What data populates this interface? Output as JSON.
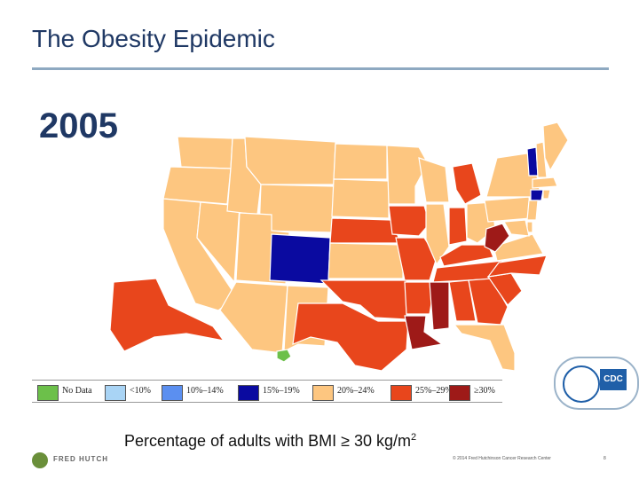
{
  "slide": {
    "title": "The Obesity Epidemic",
    "year": "2005",
    "caption_main": "Percentage of adults with BMI ≥ 30 kg/m",
    "caption_sup": "2",
    "copyright": "© 2014 Fred Hutchinson Cancer Research Center",
    "page_number": "8",
    "org_logo": "FRED HUTCH",
    "cdc_logo": "CDC"
  },
  "legend": [
    {
      "label": "No Data",
      "color": "#6cc04a"
    },
    {
      "label": "<10%",
      "color": "#a9d4f5"
    },
    {
      "label": "10%–14%",
      "color": "#5b8ff0"
    },
    {
      "label": "15%–19%",
      "color": "#0a0aa0"
    },
    {
      "label": "20%–24%",
      "color": "#fdc680"
    },
    {
      "label": "25%–29%",
      "color": "#e8461c"
    },
    {
      "label": "≥30%",
      "color": "#9e1a18"
    }
  ],
  "map_data": {
    "colors": {
      "15-19": "#0a0aa0",
      "20-24": "#fdc680",
      "25-29": "#e8461c",
      "30+": "#9e1a18",
      "no_data": "#6cc04a"
    },
    "states": [
      {
        "name": "Washington",
        "class": "20-24"
      },
      {
        "name": "Oregon",
        "class": "20-24"
      },
      {
        "name": "California",
        "class": "20-24"
      },
      {
        "name": "Nevada",
        "class": "20-24"
      },
      {
        "name": "Idaho",
        "class": "20-24"
      },
      {
        "name": "Montana",
        "class": "20-24"
      },
      {
        "name": "Wyoming",
        "class": "20-24"
      },
      {
        "name": "Utah",
        "class": "20-24"
      },
      {
        "name": "Arizona",
        "class": "20-24"
      },
      {
        "name": "Colorado",
        "class": "15-19"
      },
      {
        "name": "New Mexico",
        "class": "20-24"
      },
      {
        "name": "North Dakota",
        "class": "20-24"
      },
      {
        "name": "South Dakota",
        "class": "20-24"
      },
      {
        "name": "Nebraska",
        "class": "25-29"
      },
      {
        "name": "Kansas",
        "class": "20-24"
      },
      {
        "name": "Oklahoma",
        "class": "25-29"
      },
      {
        "name": "Texas",
        "class": "25-29"
      },
      {
        "name": "Minnesota",
        "class": "20-24"
      },
      {
        "name": "Iowa",
        "class": "25-29"
      },
      {
        "name": "Missouri",
        "class": "25-29"
      },
      {
        "name": "Arkansas",
        "class": "25-29"
      },
      {
        "name": "Louisiana",
        "class": "30+"
      },
      {
        "name": "Wisconsin",
        "class": "20-24"
      },
      {
        "name": "Illinois",
        "class": "20-24"
      },
      {
        "name": "Michigan",
        "class": "25-29"
      },
      {
        "name": "Indiana",
        "class": "25-29"
      },
      {
        "name": "Ohio",
        "class": "20-24"
      },
      {
        "name": "Kentucky",
        "class": "25-29"
      },
      {
        "name": "Tennessee",
        "class": "25-29"
      },
      {
        "name": "Mississippi",
        "class": "30+"
      },
      {
        "name": "Alabama",
        "class": "25-29"
      },
      {
        "name": "Georgia",
        "class": "25-29"
      },
      {
        "name": "Florida",
        "class": "20-24"
      },
      {
        "name": "South Carolina",
        "class": "25-29"
      },
      {
        "name": "North Carolina",
        "class": "25-29"
      },
      {
        "name": "Virginia",
        "class": "20-24"
      },
      {
        "name": "West Virginia",
        "class": "30+"
      },
      {
        "name": "Pennsylvania",
        "class": "20-24"
      },
      {
        "name": "New York",
        "class": "20-24"
      },
      {
        "name": "Vermont",
        "class": "15-19"
      },
      {
        "name": "New Hampshire",
        "class": "20-24"
      },
      {
        "name": "Maine",
        "class": "20-24"
      },
      {
        "name": "Massachusetts",
        "class": "20-24"
      },
      {
        "name": "Connecticut",
        "class": "15-19"
      },
      {
        "name": "Rhode Island",
        "class": "20-24"
      },
      {
        "name": "New Jersey",
        "class": "20-24"
      },
      {
        "name": "Delaware",
        "class": "20-24"
      },
      {
        "name": "Maryland",
        "class": "20-24"
      },
      {
        "name": "Alaska",
        "class": "25-29"
      },
      {
        "name": "Hawaii",
        "class": "no_data"
      }
    ]
  }
}
